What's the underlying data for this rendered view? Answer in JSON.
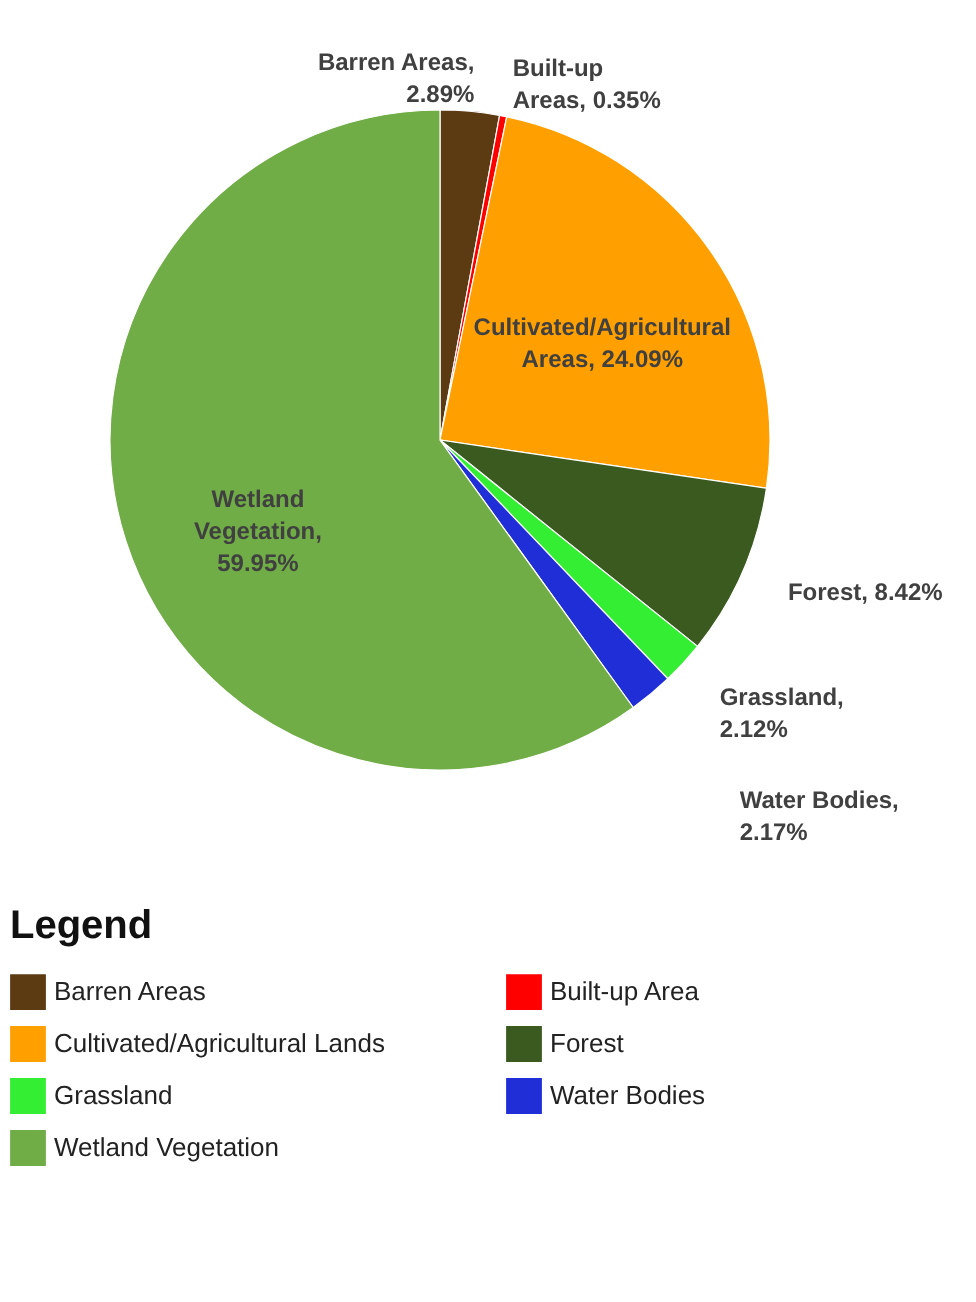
{
  "chart_data": {
    "type": "pie",
    "categories": [
      "Barren Areas",
      "Built-up Area",
      "Cultivated/Agricultural Lands",
      "Forest",
      "Grassland",
      "Water Bodies",
      "Wetland Vegetation"
    ],
    "values": [
      2.89,
      0.35,
      24.09,
      8.42,
      2.12,
      2.17,
      59.95
    ],
    "colors": [
      "#5c3a12",
      "#ff0000",
      "#ffa000",
      "#3b5a1f",
      "#33ee33",
      "#1f2ed6",
      "#70ad47"
    ],
    "annotations": [
      "Barren Areas,\n2.89%",
      "Built-up\nAreas, 0.35%",
      "Cultivated/Agricultural\nAreas, 24.09%",
      "Forest, 8.42%",
      "Grassland,\n2.12%",
      "Water Bodies,\n2.17%",
      "Wetland\nVegetation,\n59.95%"
    ],
    "legend_title": "Legend",
    "legend": "bottom"
  }
}
